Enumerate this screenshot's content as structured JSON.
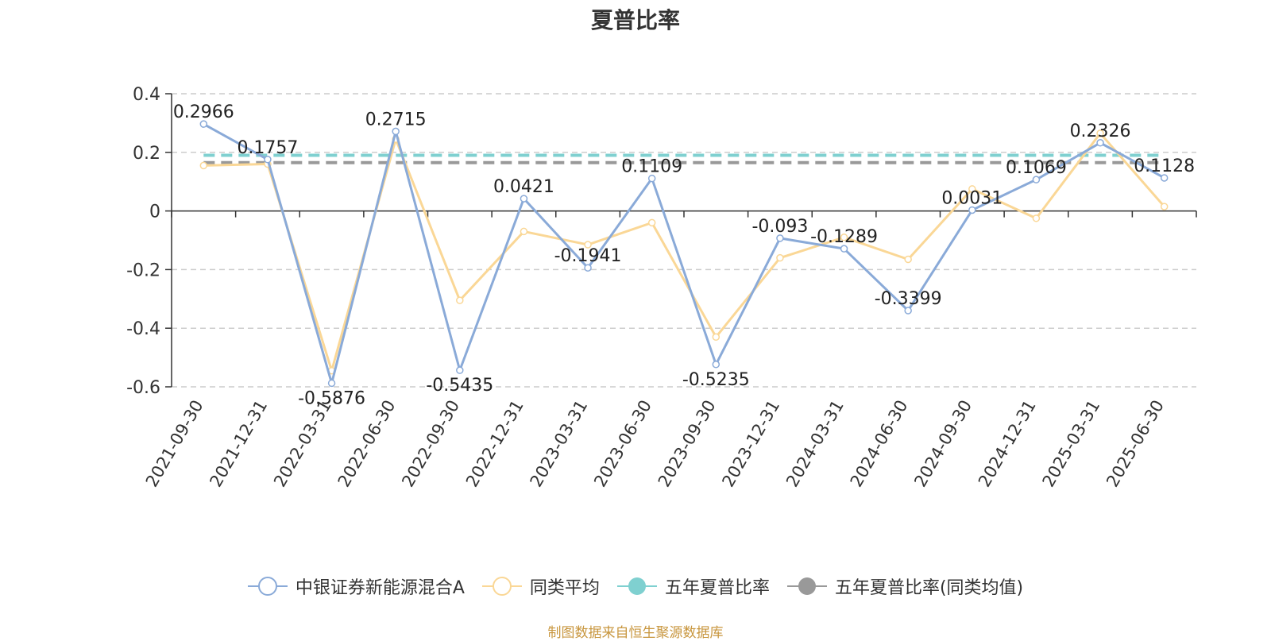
{
  "title": "夏普比率",
  "source": "制图数据来自恒生聚源数据库",
  "chart_data": {
    "type": "line",
    "title": "夏普比率",
    "categories": [
      "2021-09-30",
      "2021-12-31",
      "2022-03-31",
      "2022-06-30",
      "2022-09-30",
      "2022-12-31",
      "2023-03-31",
      "2023-06-30",
      "2023-09-30",
      "2023-12-31",
      "2024-03-31",
      "2024-06-30",
      "2024-09-30",
      "2024-12-31",
      "2025-03-31",
      "2025-06-30"
    ],
    "series": [
      {
        "name": "中银证券新能源混合A",
        "color": "#8aaad8",
        "values": [
          0.2966,
          0.1757,
          -0.5876,
          0.2715,
          -0.5435,
          0.0421,
          -0.1941,
          0.1109,
          -0.5235,
          -0.093,
          -0.1289,
          -0.3399,
          0.0031,
          0.1069,
          0.2326,
          0.1128
        ],
        "labels": [
          "0.2966",
          "0.1757",
          "-0.5876",
          "0.2715",
          "-0.5435",
          "0.0421",
          "-0.1941",
          "0.1109",
          "-0.5235",
          "-0.093",
          "-0.1289",
          "-0.3399",
          "0.0031",
          "0.1069",
          "0.2326",
          "0.1128"
        ]
      },
      {
        "name": "同类平均",
        "color": "#fad796",
        "values": [
          0.155,
          0.16,
          -0.545,
          0.245,
          -0.305,
          -0.07,
          -0.115,
          -0.04,
          -0.43,
          -0.16,
          -0.09,
          -0.165,
          0.075,
          -0.025,
          0.265,
          0.015
        ]
      }
    ],
    "reference_lines": [
      {
        "name": "五年夏普比率",
        "color": "#7fd0d0",
        "value": 0.19
      },
      {
        "name": "五年夏普比率(同类均值)",
        "color": "#999999",
        "value": 0.165
      }
    ],
    "y_ticks": [
      "0.4",
      "0.2",
      "0",
      "-0.2",
      "-0.4",
      "-0.6"
    ],
    "ylim": [
      -0.6,
      0.4
    ],
    "grid": "horizontal-dashed",
    "legend_position": "bottom"
  }
}
